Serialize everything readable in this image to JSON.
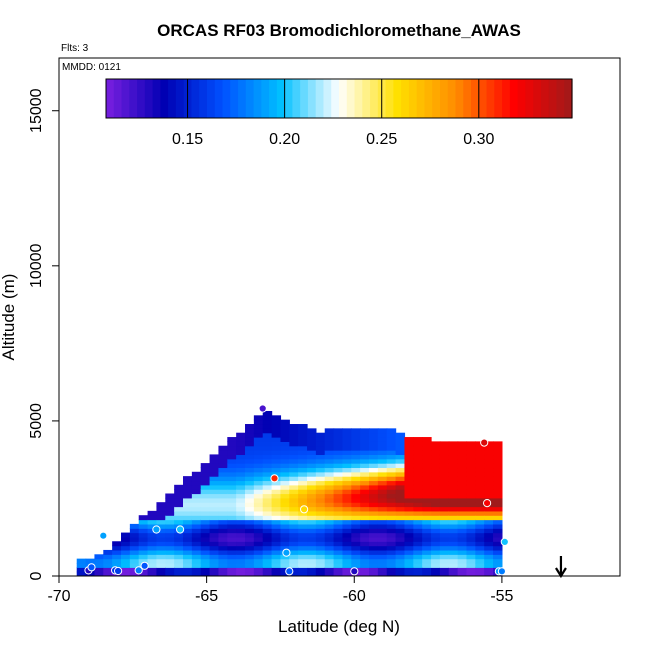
{
  "chart_data": {
    "type": "heatmap",
    "title": "ORCAS RF03 Bromodichloromethane_AWAS",
    "annotations": {
      "flights": "Flts: 3",
      "date": "MMDD: 0121"
    },
    "xlabel": "Latitude (deg N)",
    "ylabel": "Altitude (m)",
    "xlim": [
      -70,
      -51
    ],
    "ylim": [
      0,
      16700
    ],
    "x_ticks": [
      -70,
      -65,
      -60,
      -55
    ],
    "x_tick_labels": [
      "-70",
      "-65",
      "-60",
      "-55"
    ],
    "y_ticks": [
      0,
      5000,
      10000,
      15000
    ],
    "y_tick_labels": [
      "0",
      "5000",
      "10000",
      "15000"
    ],
    "colorbar": {
      "range": [
        0.108,
        0.348
      ],
      "ticks": [
        0.15,
        0.2,
        0.25,
        0.3
      ],
      "tick_labels": [
        "0.15",
        "0.20",
        "0.25",
        "0.30"
      ],
      "colors": [
        "#7a1fe0",
        "#0000b3",
        "#0050ff",
        "#00bfff",
        "#ffffff",
        "#ffe000",
        "#ff8c00",
        "#ff0000",
        "#a01a1a"
      ]
    },
    "arrow_latitude": -53,
    "samples": [
      {
        "lat": -69.0,
        "alt": 180,
        "value": 0.13
      },
      {
        "lat": -68.9,
        "alt": 280,
        "value": 0.17
      },
      {
        "lat": -68.5,
        "alt": 1300,
        "value": 0.19
      },
      {
        "lat": -68.1,
        "alt": 180,
        "value": 0.16
      },
      {
        "lat": -68.0,
        "alt": 160,
        "value": 0.16
      },
      {
        "lat": -67.3,
        "alt": 180,
        "value": 0.18
      },
      {
        "lat": -67.1,
        "alt": 330,
        "value": 0.17
      },
      {
        "lat": -66.7,
        "alt": 1500,
        "value": 0.19
      },
      {
        "lat": -65.9,
        "alt": 1500,
        "value": 0.2
      },
      {
        "lat": -63.1,
        "alt": 5400,
        "value": 0.12
      },
      {
        "lat": -62.7,
        "alt": 3150,
        "value": 0.31
      },
      {
        "lat": -62.3,
        "alt": 750,
        "value": 0.19
      },
      {
        "lat": -62.2,
        "alt": 150,
        "value": 0.17
      },
      {
        "lat": -61.7,
        "alt": 2150,
        "value": 0.26
      },
      {
        "lat": -60.0,
        "alt": 150,
        "value": 0.13
      },
      {
        "lat": -55.6,
        "alt": 4300,
        "value": 0.33
      },
      {
        "lat": -55.5,
        "alt": 2350,
        "value": 0.32
      },
      {
        "lat": -55.1,
        "alt": 150,
        "value": 0.19
      },
      {
        "lat": -55.0,
        "alt": 150,
        "value": 0.18
      },
      {
        "lat": -54.9,
        "alt": 1100,
        "value": 0.2
      }
    ]
  }
}
